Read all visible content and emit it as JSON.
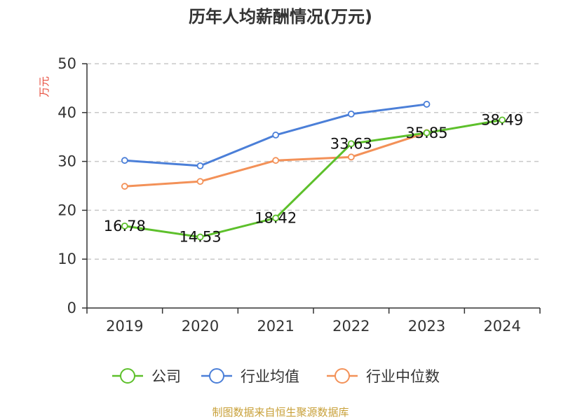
{
  "chart_data": {
    "type": "line",
    "title": "历年人均薪酬情况(万元)",
    "ylabel": "万元",
    "xlabel": "",
    "categories": [
      "2019",
      "2020",
      "2021",
      "2022",
      "2023",
      "2024"
    ],
    "ylim": [
      0,
      50
    ],
    "yticks": [
      0,
      10,
      20,
      30,
      40,
      50
    ],
    "grid": true,
    "legend_position": "bottom",
    "series": [
      {
        "name": "公司",
        "color": "#5dc02b",
        "values": [
          16.78,
          14.53,
          18.42,
          33.63,
          35.85,
          38.49
        ],
        "labels": [
          "16.78",
          "14.53",
          "18.42",
          "33.63",
          "35.85",
          "38.49"
        ]
      },
      {
        "name": "行业均值",
        "color": "#4b7fd8",
        "values": [
          30.2,
          29.1,
          35.4,
          39.7,
          41.7,
          null
        ],
        "labels": []
      },
      {
        "name": "行业中位数",
        "color": "#f39158",
        "values": [
          24.9,
          25.9,
          30.2,
          30.9,
          35.9,
          null
        ],
        "labels": []
      }
    ]
  },
  "source": "制图数据来自恒生聚源数据库"
}
